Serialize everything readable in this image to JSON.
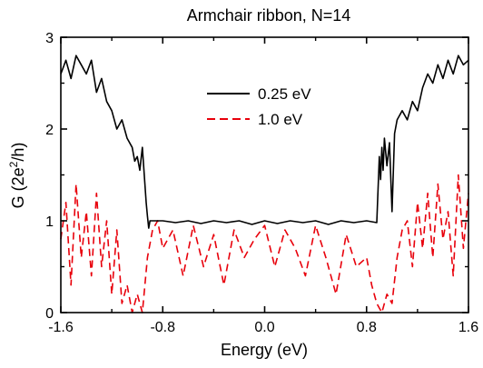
{
  "chart_data": {
    "type": "line",
    "title": "Armchair ribbon, N=14",
    "xlabel": "Energy (eV)",
    "ylabel_parts": {
      "prefix": "G (2e",
      "sup": "2",
      "suffix": "/h)"
    },
    "xlim": [
      -1.6,
      1.6
    ],
    "ylim": [
      0,
      3
    ],
    "x_ticks": [
      -1.6,
      -0.8,
      0.0,
      0.8,
      1.6
    ],
    "x_tick_labels": [
      "-1.6",
      "-0.8",
      "0.0",
      "0.8",
      "1.6"
    ],
    "y_ticks": [
      0,
      1,
      2,
      3
    ],
    "y_tick_labels": [
      "0",
      "1",
      "2",
      "3"
    ],
    "legend_position": "top-center",
    "grid": false,
    "series": [
      {
        "name": "0.25 eV",
        "color": "#000000",
        "style": "solid",
        "x": [
          -1.6,
          -1.56,
          -1.52,
          -1.48,
          -1.44,
          -1.4,
          -1.36,
          -1.32,
          -1.28,
          -1.24,
          -1.2,
          -1.16,
          -1.12,
          -1.08,
          -1.04,
          -1.02,
          -1.0,
          -0.98,
          -0.96,
          -0.94,
          -0.93,
          -0.92,
          -0.91,
          -0.9,
          -0.8,
          -0.7,
          -0.6,
          -0.5,
          -0.4,
          -0.3,
          -0.2,
          -0.1,
          0.0,
          0.1,
          0.2,
          0.3,
          0.4,
          0.5,
          0.6,
          0.7,
          0.8,
          0.88,
          0.9,
          0.91,
          0.92,
          0.93,
          0.94,
          0.96,
          0.98,
          1.0,
          1.02,
          1.04,
          1.08,
          1.12,
          1.16,
          1.2,
          1.24,
          1.28,
          1.32,
          1.36,
          1.4,
          1.44,
          1.48,
          1.52,
          1.56,
          1.6
        ],
        "y": [
          2.6,
          2.75,
          2.55,
          2.8,
          2.7,
          2.6,
          2.75,
          2.4,
          2.55,
          2.3,
          2.2,
          2.0,
          2.1,
          1.9,
          1.8,
          1.65,
          1.7,
          1.55,
          1.8,
          1.4,
          1.2,
          1.05,
          0.92,
          1.0,
          1.0,
          0.98,
          1.0,
          0.97,
          1.0,
          0.98,
          1.0,
          0.96,
          1.0,
          0.97,
          1.0,
          0.98,
          1.0,
          0.96,
          1.0,
          0.98,
          1.0,
          0.98,
          1.7,
          1.45,
          1.8,
          1.55,
          1.9,
          1.6,
          1.85,
          1.1,
          1.95,
          2.1,
          2.2,
          2.1,
          2.3,
          2.2,
          2.45,
          2.6,
          2.5,
          2.7,
          2.55,
          2.75,
          2.6,
          2.8,
          2.7,
          2.75
        ]
      },
      {
        "name": "1.0 eV",
        "color": "#e8000b",
        "style": "dashed",
        "x": [
          -1.6,
          -1.56,
          -1.52,
          -1.48,
          -1.44,
          -1.4,
          -1.36,
          -1.32,
          -1.28,
          -1.24,
          -1.2,
          -1.16,
          -1.12,
          -1.08,
          -1.04,
          -1.0,
          -0.96,
          -0.92,
          -0.88,
          -0.84,
          -0.8,
          -0.72,
          -0.64,
          -0.56,
          -0.48,
          -0.4,
          -0.32,
          -0.24,
          -0.16,
          -0.08,
          0.0,
          0.08,
          0.16,
          0.24,
          0.32,
          0.4,
          0.48,
          0.56,
          0.64,
          0.72,
          0.8,
          0.84,
          0.88,
          0.92,
          0.96,
          1.0,
          1.04,
          1.08,
          1.12,
          1.16,
          1.2,
          1.24,
          1.28,
          1.32,
          1.36,
          1.4,
          1.44,
          1.48,
          1.52,
          1.56,
          1.6
        ],
        "y": [
          0.8,
          1.2,
          0.3,
          1.4,
          0.6,
          1.1,
          0.4,
          1.3,
          0.5,
          1.0,
          0.2,
          0.9,
          0.1,
          0.3,
          0.0,
          0.2,
          0.0,
          0.6,
          0.9,
          1.0,
          0.7,
          0.9,
          0.4,
          0.95,
          0.5,
          0.85,
          0.3,
          0.9,
          0.6,
          0.8,
          0.95,
          0.5,
          0.9,
          0.7,
          0.4,
          0.95,
          0.6,
          0.2,
          0.85,
          0.5,
          0.6,
          0.3,
          0.1,
          0.0,
          0.2,
          0.1,
          0.6,
          0.9,
          1.0,
          0.5,
          1.2,
          0.7,
          1.3,
          0.6,
          1.4,
          0.8,
          1.1,
          0.4,
          1.5,
          0.7,
          1.3
        ]
      }
    ]
  }
}
